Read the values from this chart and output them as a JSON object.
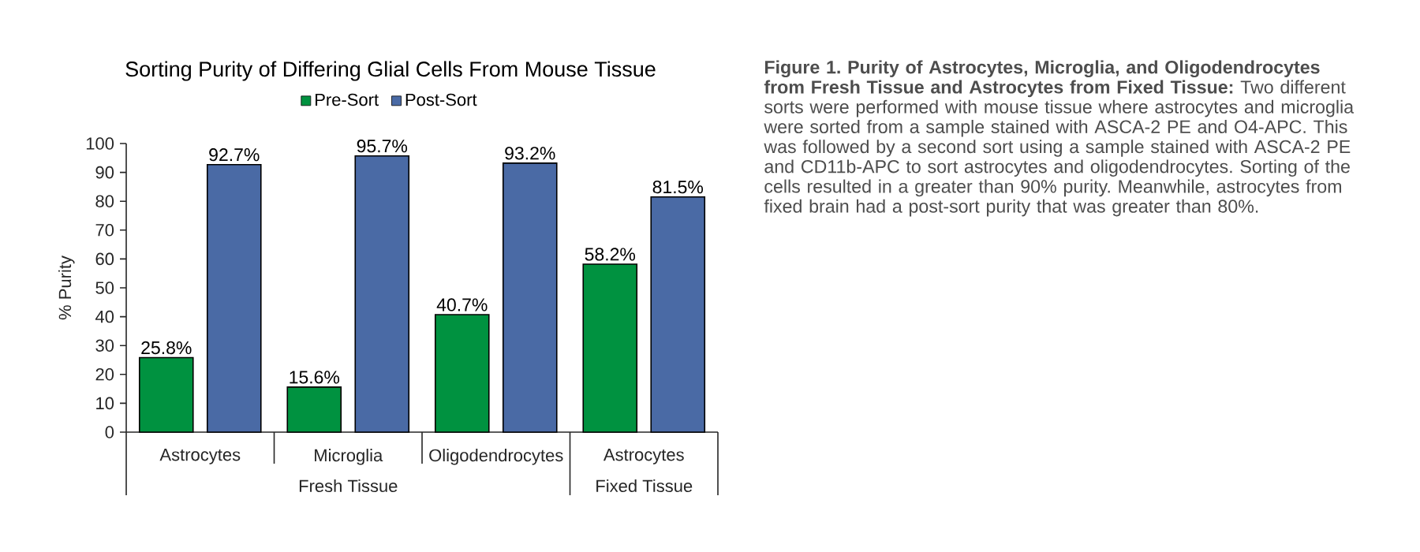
{
  "chart_data": {
    "type": "bar",
    "title": "Sorting Purity of Differing Glial Cells From Mouse Tissue",
    "ylabel": "% Purity",
    "categories": [
      "Astrocytes",
      "Microglia",
      "Oligodendrocytes",
      "Astrocytes"
    ],
    "series": [
      {
        "name": "Pre-Sort",
        "color": "#009240",
        "values": [
          25.8,
          15.6,
          40.7,
          58.2
        ],
        "value_labels": [
          "25.8%",
          "15.6%",
          "40.7%",
          "58.2%"
        ]
      },
      {
        "name": "Post-Sort",
        "color": "#4a6aa5",
        "values": [
          92.7,
          95.7,
          93.2,
          81.5
        ],
        "value_labels": [
          "92.7%",
          "95.7%",
          "93.2%",
          "81.5%"
        ]
      }
    ],
    "ylim": [
      0,
      100
    ],
    "yticks": [
      0,
      10,
      20,
      30,
      40,
      50,
      60,
      70,
      80,
      90,
      100
    ],
    "legend": "top",
    "annotations": [
      "Fresh Tissue",
      "Fixed Tissue",
      "**Figure 1. Purity of Astrocytes, Microglia, and Oligodendrocytes from Fresh Tissue and Astrocytes from Fixed Tissue:** Two different sorts were performed with mouse tissue where astrocytes and microglia were sorted from a sample stained with ASCA-2 PE and O4-APC. This was followed by a second sort using a sample stained with ASCA-2 PE and CD11b-APC to sort astrocytes and oligodendrocytes. Sorting of the cells resulted in a greater than 90% purity. Meanwhile, astrocytes from fixed brain had a post-sort purity that was greater than 80%."
    ]
  }
}
